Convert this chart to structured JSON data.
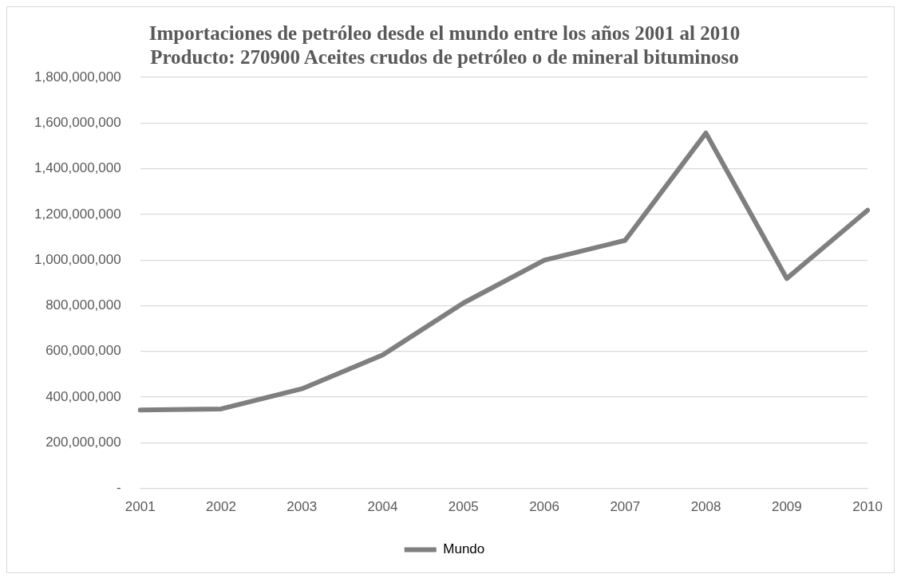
{
  "chart_data": {
    "type": "line",
    "title": "Importaciones de petróleo desde el mundo entre los años 2001 al 2010",
    "subtitle": "Producto: 270900 Aceites crudos de petróleo o de mineral bituminoso",
    "categories": [
      "2001",
      "2002",
      "2003",
      "2004",
      "2005",
      "2006",
      "2007",
      "2008",
      "2009",
      "2010"
    ],
    "series": [
      {
        "name": "Mundo",
        "color": "#7f7f7f",
        "values": [
          343000000,
          348000000,
          436000000,
          584000000,
          812000000,
          999000000,
          1086000000,
          1556000000,
          919000000,
          1218000000
        ]
      }
    ],
    "ylim": [
      0,
      1800000000
    ],
    "yticks": [
      {
        "value": 0,
        "label": "-"
      },
      {
        "value": 200000000,
        "label": "200,000,000"
      },
      {
        "value": 400000000,
        "label": "400,000,000"
      },
      {
        "value": 600000000,
        "label": "600,000,000"
      },
      {
        "value": 800000000,
        "label": "800,000,000"
      },
      {
        "value": 1000000000,
        "label": "1,000,000,000"
      },
      {
        "value": 1200000000,
        "label": "1,200,000,000"
      },
      {
        "value": 1400000000,
        "label": "1,400,000,000"
      },
      {
        "value": 1600000000,
        "label": "1,600,000,000"
      },
      {
        "value": 1800000000,
        "label": "1,800,000,000"
      }
    ],
    "grid": "y",
    "legend": "bottom",
    "marker": "none",
    "line_style": "solid"
  }
}
